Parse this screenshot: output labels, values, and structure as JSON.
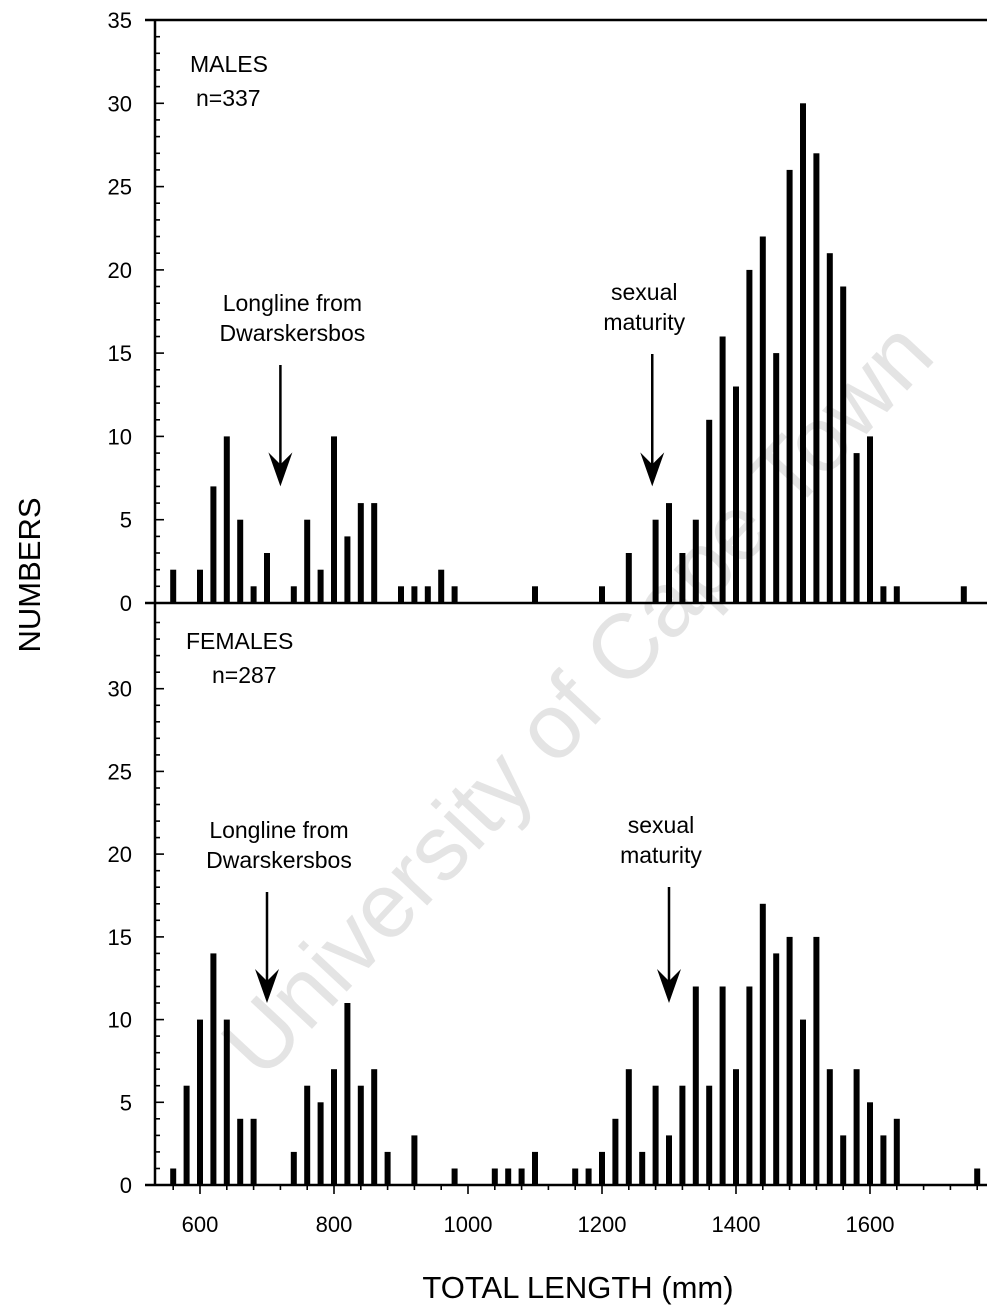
{
  "watermark": "University of Cape Town",
  "chart_data": [
    {
      "type": "bar",
      "panel": "top",
      "title": "MALES",
      "subtitle": "n=337",
      "ylabel": "NUMBERS",
      "xlabel": "TOTAL LENGTH (mm)",
      "xlim": [
        550,
        1770
      ],
      "ylim": [
        0,
        35
      ],
      "y_ticks": [
        0,
        5,
        10,
        15,
        20,
        25,
        30,
        35
      ],
      "x_ticks": [
        600,
        800,
        1000,
        1200,
        1400,
        1600
      ],
      "grid": false,
      "x": [
        560,
        600,
        620,
        640,
        660,
        680,
        700,
        740,
        760,
        780,
        800,
        820,
        840,
        860,
        900,
        920,
        940,
        960,
        980,
        1100,
        1200,
        1240,
        1280,
        1300,
        1320,
        1340,
        1360,
        1380,
        1400,
        1420,
        1440,
        1460,
        1480,
        1500,
        1520,
        1540,
        1560,
        1580,
        1600,
        1620,
        1640,
        1740
      ],
      "values": [
        2,
        2,
        7,
        10,
        5,
        1,
        3,
        1,
        5,
        2,
        10,
        4,
        6,
        6,
        1,
        1,
        1,
        2,
        1,
        1,
        1,
        3,
        5,
        6,
        3,
        5,
        11,
        16,
        13,
        20,
        22,
        15,
        26,
        30,
        27,
        21,
        19,
        9,
        10,
        1,
        1,
        1
      ],
      "annotations": [
        {
          "text_lines": [
            "Longline from",
            "Dwarskersbos"
          ],
          "arrow_x": 720,
          "arrow_y": 7
        },
        {
          "text_lines": [
            "sexual",
            "maturity"
          ],
          "arrow_x": 1275,
          "arrow_y": 7
        }
      ]
    },
    {
      "type": "bar",
      "panel": "bottom",
      "title": "FEMALES",
      "subtitle": "n=287",
      "ylabel": "NUMBERS",
      "xlabel": "TOTAL LENGTH (mm)",
      "xlim": [
        550,
        1770
      ],
      "ylim": [
        0,
        35
      ],
      "y_ticks": [
        0,
        5,
        10,
        15,
        20,
        25,
        30
      ],
      "x_ticks": [
        600,
        800,
        1000,
        1200,
        1400,
        1600
      ],
      "grid": false,
      "x": [
        560,
        580,
        600,
        620,
        640,
        660,
        680,
        740,
        760,
        780,
        800,
        820,
        840,
        860,
        880,
        920,
        980,
        1040,
        1060,
        1080,
        1100,
        1160,
        1180,
        1200,
        1220,
        1240,
        1260,
        1280,
        1300,
        1320,
        1340,
        1360,
        1380,
        1400,
        1420,
        1440,
        1460,
        1480,
        1500,
        1520,
        1540,
        1560,
        1580,
        1600,
        1620,
        1640,
        1760
      ],
      "values": [
        1,
        6,
        10,
        14,
        10,
        4,
        4,
        2,
        6,
        5,
        7,
        11,
        6,
        7,
        2,
        3,
        1,
        1,
        1,
        1,
        2,
        1,
        1,
        2,
        4,
        7,
        2,
        6,
        3,
        6,
        12,
        6,
        12,
        7,
        12,
        17,
        14,
        15,
        10,
        15,
        7,
        3,
        7,
        5,
        3,
        4,
        1
      ],
      "annotations": [
        {
          "text_lines": [
            "Longline from",
            "Dwarskersbos"
          ],
          "arrow_x": 700,
          "arrow_y": 11
        },
        {
          "text_lines": [
            "sexual",
            "maturity"
          ],
          "arrow_x": 1300,
          "arrow_y": 11
        }
      ]
    }
  ]
}
